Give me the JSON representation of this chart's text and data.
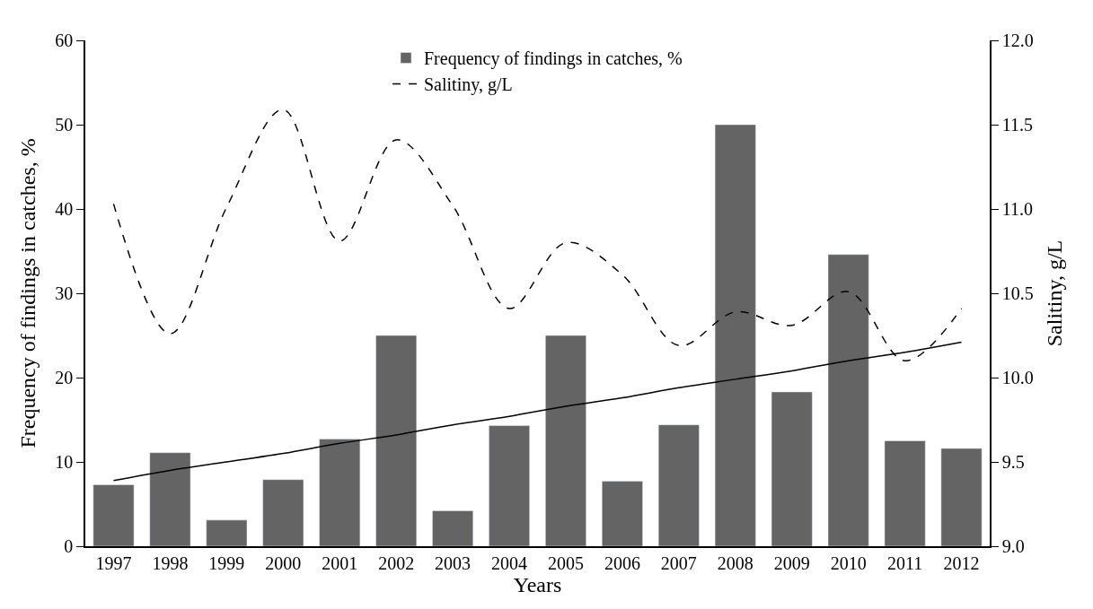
{
  "chart_data": {
    "type": "bar",
    "xlabel": "Years",
    "ylabel": "Frequency of findings in catches, %",
    "y2label": "Salitiny, g/L",
    "categories": [
      "1997",
      "1998",
      "1999",
      "2000",
      "2001",
      "2002",
      "2003",
      "2004",
      "2005",
      "2006",
      "2007",
      "2008",
      "2009",
      "2010",
      "2011",
      "2012"
    ],
    "series": [
      {
        "name": "Frequency of findings in catches, %",
        "color": "#646464",
        "values": [
          7.3,
          11.1,
          3.1,
          7.9,
          12.7,
          25,
          4.2,
          14.3,
          25,
          7.7,
          14.4,
          50,
          18.3,
          34.6,
          12.5,
          11.6
        ]
      },
      {
        "name": "Salitiny, g/L",
        "type": "line",
        "axis": "y2",
        "color": "#000000",
        "line_style": "dashed",
        "values": [
          11.03,
          10.26,
          11.01,
          11.59,
          10.81,
          11.41,
          11.02,
          10.41,
          10.8,
          10.61,
          10.19,
          10.39,
          10.31,
          10.51,
          10.1,
          10.41
        ]
      },
      {
        "type": "line",
        "axis": "y2",
        "color": "#000000",
        "line_style": "solid",
        "values": [
          9.39,
          9.45,
          9.5,
          9.55,
          9.61,
          9.66,
          9.72,
          9.77,
          9.83,
          9.88,
          9.94,
          9.99,
          10.04,
          10.1,
          10.15,
          10.21
        ]
      }
    ],
    "ylim": [
      0,
      60
    ],
    "yticks": [
      0,
      10,
      20,
      30,
      40,
      50,
      60
    ],
    "y2lim": [
      9.0,
      12.0
    ],
    "y2ticks": [
      {
        "value": 9.0,
        "label": "9.0"
      },
      {
        "value": 9.5,
        "label": "9.5"
      },
      {
        "value": 10.0,
        "label": "10.0"
      },
      {
        "value": 10.5,
        "label": "10.5"
      },
      {
        "value": 11.0,
        "label": "11.0"
      },
      {
        "value": 11.5,
        "label": "11.5"
      },
      {
        "value": 12.0,
        "label": "12.0"
      }
    ],
    "legend": "top",
    "marker": "none"
  }
}
